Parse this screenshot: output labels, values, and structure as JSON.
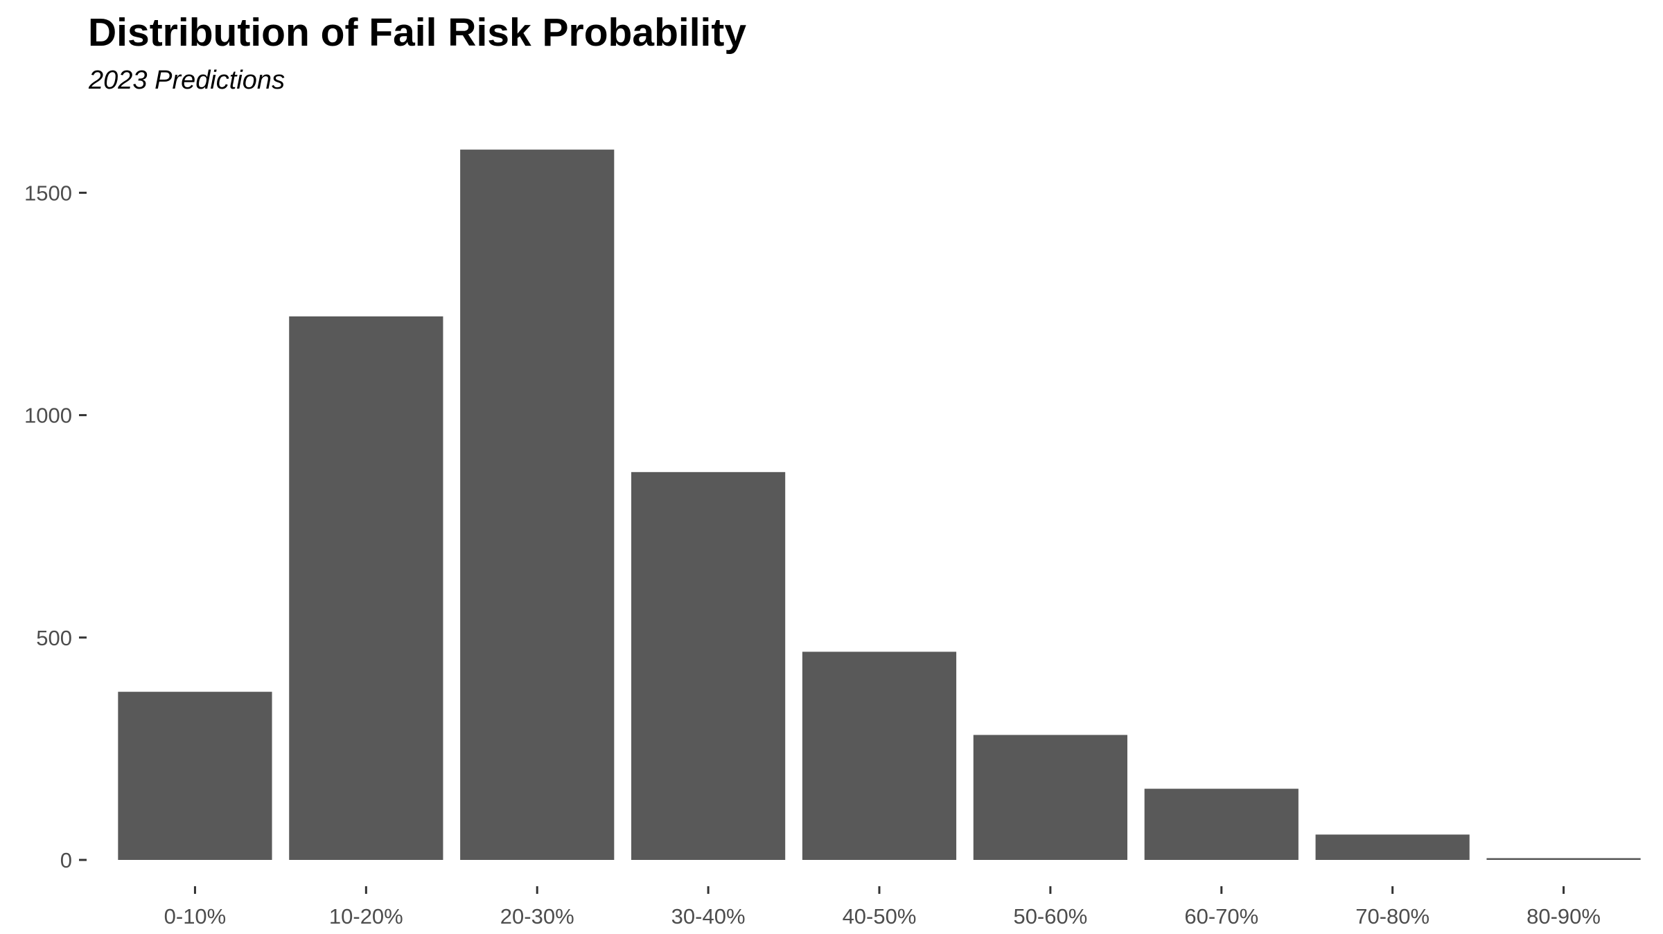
{
  "chart_data": {
    "type": "bar",
    "title": "Distribution of Fail Risk Probability",
    "subtitle": "2023 Predictions",
    "xlabel": "",
    "ylabel": "",
    "categories": [
      "0-10%",
      "10-20%",
      "20-30%",
      "30-40%",
      "40-50%",
      "50-60%",
      "60-70%",
      "70-80%",
      "80-90%"
    ],
    "values": [
      378,
      1222,
      1597,
      872,
      468,
      281,
      160,
      57,
      4
    ],
    "ylim": [
      0,
      1650
    ],
    "yticks": [
      0,
      500,
      1000,
      1500
    ],
    "grid": false,
    "legend": "none",
    "bar_color": "#595959",
    "tick_color": "#333333",
    "tick_label_color": "#4d4d4d"
  }
}
